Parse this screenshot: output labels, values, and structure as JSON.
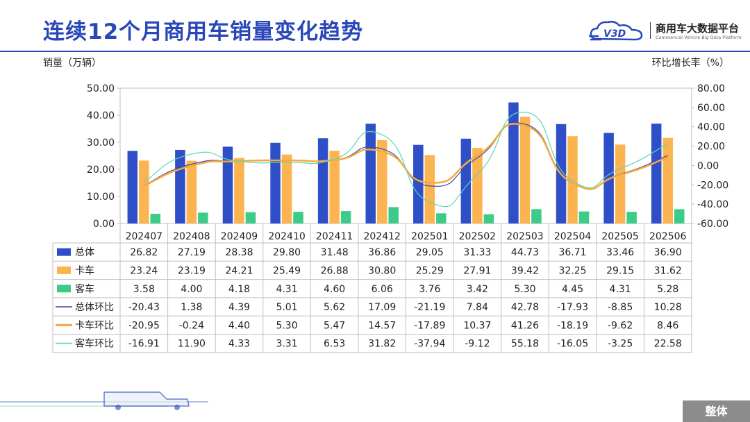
{
  "title": "连续12个月商用车销量变化趋势",
  "logo": {
    "name": "商用车大数据平台",
    "en": "Commercial Vehicle Big Data Platform",
    "mark": "V3D"
  },
  "badge": "整体",
  "colors": {
    "total": "#2f4fc9",
    "truck": "#fbb450",
    "bus": "#3dcb8a",
    "totalLine": "#3b4ea8",
    "truckLine": "#f8a93e",
    "busLine": "#5ed6b3"
  },
  "chart_data": {
    "type": "bar",
    "ylabel": "销量（万辆）",
    "y2label": "环比增长率（%）",
    "ylim": [
      0,
      50
    ],
    "y2lim": [
      -60,
      80
    ],
    "yticks": [
      "0.00",
      "10.00",
      "20.00",
      "30.00",
      "40.00",
      "50.00"
    ],
    "y2ticks": [
      "-60.00",
      "-40.00",
      "-20.00",
      "0.00",
      "20.00",
      "40.00",
      "60.00",
      "80.00"
    ],
    "categories": [
      "202407",
      "202408",
      "202409",
      "202410",
      "202411",
      "202412",
      "202501",
      "202502",
      "202503",
      "202504",
      "202505",
      "202506"
    ],
    "series": [
      {
        "name": "总体",
        "kind": "bar",
        "values": [
          26.82,
          27.19,
          28.38,
          29.8,
          31.48,
          36.86,
          29.05,
          31.33,
          44.73,
          36.71,
          33.46,
          36.9
        ],
        "labels": [
          "26.82",
          "27.19",
          "28.38",
          "29.80",
          "31.48",
          "36.86",
          "29.05",
          "31.33",
          "44.73",
          "36.71",
          "33.46",
          "36.90"
        ]
      },
      {
        "name": "卡车",
        "kind": "bar",
        "values": [
          23.24,
          23.19,
          24.21,
          25.49,
          26.88,
          30.8,
          25.29,
          27.91,
          39.42,
          32.25,
          29.15,
          31.62
        ],
        "labels": [
          "23.24",
          "23.19",
          "24.21",
          "25.49",
          "26.88",
          "30.80",
          "25.29",
          "27.91",
          "39.42",
          "32.25",
          "29.15",
          "31.62"
        ]
      },
      {
        "name": "客车",
        "kind": "bar",
        "values": [
          3.58,
          4.0,
          4.18,
          4.31,
          4.6,
          6.06,
          3.76,
          3.42,
          5.3,
          4.45,
          4.31,
          5.28
        ],
        "labels": [
          "3.58",
          "4.00",
          "4.18",
          "4.31",
          "4.60",
          "6.06",
          "3.76",
          "3.42",
          "5.30",
          "4.45",
          "4.31",
          "5.28"
        ]
      },
      {
        "name": "总体环比",
        "kind": "line",
        "values": [
          -20.43,
          1.38,
          4.39,
          5.01,
          5.62,
          17.09,
          -21.19,
          7.84,
          42.78,
          -17.93,
          -8.85,
          10.28
        ],
        "labels": [
          "-20.43",
          "1.38",
          "4.39",
          "5.01",
          "5.62",
          "17.09",
          "-21.19",
          "7.84",
          "42.78",
          "-17.93",
          "-8.85",
          "10.28"
        ]
      },
      {
        "name": "卡车环比",
        "kind": "line",
        "values": [
          -20.95,
          -0.24,
          4.4,
          5.3,
          5.47,
          14.57,
          -17.89,
          10.37,
          41.26,
          -18.19,
          -9.62,
          8.46
        ],
        "labels": [
          "-20.95",
          "-0.24",
          "4.40",
          "5.30",
          "5.47",
          "14.57",
          "-17.89",
          "10.37",
          "41.26",
          "-18.19",
          "-9.62",
          "8.46"
        ]
      },
      {
        "name": "客车环比",
        "kind": "line",
        "values": [
          -16.91,
          11.9,
          4.33,
          3.31,
          6.53,
          31.82,
          -37.94,
          -9.12,
          55.18,
          -16.05,
          -3.25,
          22.58
        ],
        "labels": [
          "-16.91",
          "11.90",
          "4.33",
          "3.31",
          "6.53",
          "31.82",
          "-37.94",
          "-9.12",
          "55.18",
          "-16.05",
          "-3.25",
          "22.58"
        ]
      }
    ]
  }
}
